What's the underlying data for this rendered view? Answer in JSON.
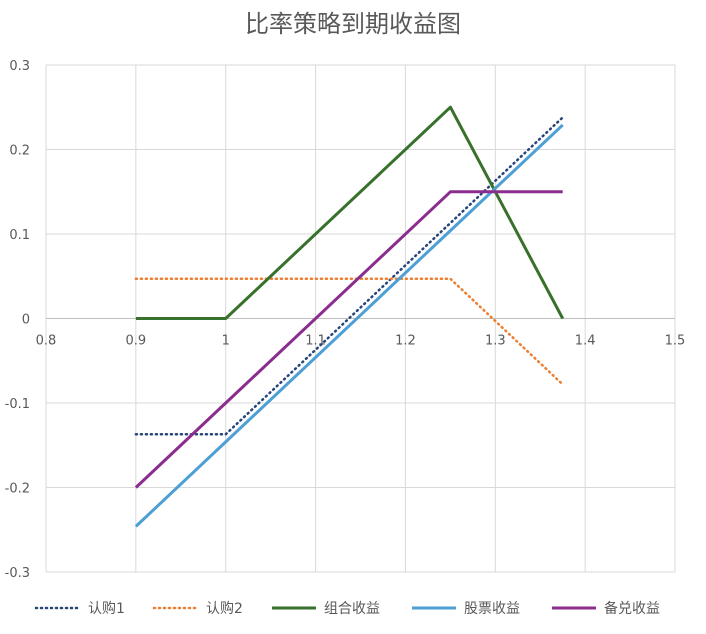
{
  "chart_data": {
    "type": "line",
    "title": "比率策略到期收益图",
    "xlabel": "",
    "ylabel": "",
    "xlim": [
      0.8,
      1.5
    ],
    "ylim": [
      -0.3,
      0.3
    ],
    "xticks": [
      "0.8",
      "0.9",
      "1",
      "1.1",
      "1.2",
      "1.3",
      "1.4",
      "1.5"
    ],
    "yticks": [
      "-0.3",
      "-0.2",
      "-0.1",
      "0",
      "0.1",
      "0.2",
      "0.3"
    ],
    "grid": true,
    "legend_position": "bottom",
    "series": [
      {
        "name": "认购1",
        "color": "#264478",
        "style": "dotted",
        "x": [
          0.9,
          1.0,
          1.25,
          1.375
        ],
        "y": [
          -0.137,
          -0.137,
          0.113,
          0.238
        ]
      },
      {
        "name": "认购2",
        "color": "#ED7D31",
        "style": "dotted",
        "x": [
          0.9,
          1.25,
          1.375
        ],
        "y": [
          0.047,
          0.047,
          -0.078
        ]
      },
      {
        "name": "组合收益",
        "color": "#38712B",
        "style": "solid",
        "x": [
          0.9,
          1.0,
          1.25,
          1.375
        ],
        "y": [
          0.0,
          0.0,
          0.25,
          0.0
        ]
      },
      {
        "name": "股票收益",
        "color": "#4E9FD4",
        "style": "solid",
        "x": [
          0.9,
          1.0,
          1.25,
          1.375
        ],
        "y": [
          -0.246,
          -0.146,
          0.104,
          0.229
        ]
      },
      {
        "name": "备兑收益",
        "color": "#8B2D8E",
        "style": "solid",
        "x": [
          0.9,
          1.0,
          1.25,
          1.375
        ],
        "y": [
          -0.2,
          -0.1,
          0.15,
          0.15
        ]
      }
    ]
  }
}
